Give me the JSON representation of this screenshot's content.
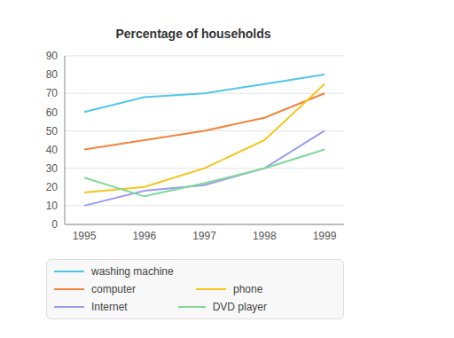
{
  "chart_data": {
    "type": "line",
    "title": "Percentage of households",
    "categories": [
      "1995",
      "1996",
      "1997",
      "1998",
      "1999"
    ],
    "series": [
      {
        "name": "washing machine",
        "color": "#4fc8e8",
        "values": [
          60,
          68,
          70,
          75,
          80
        ]
      },
      {
        "name": "computer",
        "color": "#f0843c",
        "values": [
          40,
          45,
          50,
          57,
          70
        ]
      },
      {
        "name": "phone",
        "color": "#f5c518",
        "values": [
          17,
          20,
          30,
          45,
          75
        ]
      },
      {
        "name": "Internet",
        "color": "#9b9cf0",
        "values": [
          10,
          18,
          21,
          30,
          50
        ]
      },
      {
        "name": "DVD player",
        "color": "#7fd99a",
        "values": [
          25,
          15,
          22,
          30,
          40
        ]
      }
    ],
    "ylim": [
      0,
      90
    ],
    "yticks": [
      0,
      10,
      20,
      30,
      40,
      50,
      60,
      70,
      80,
      90
    ],
    "grid": true,
    "legend": "bottom"
  }
}
